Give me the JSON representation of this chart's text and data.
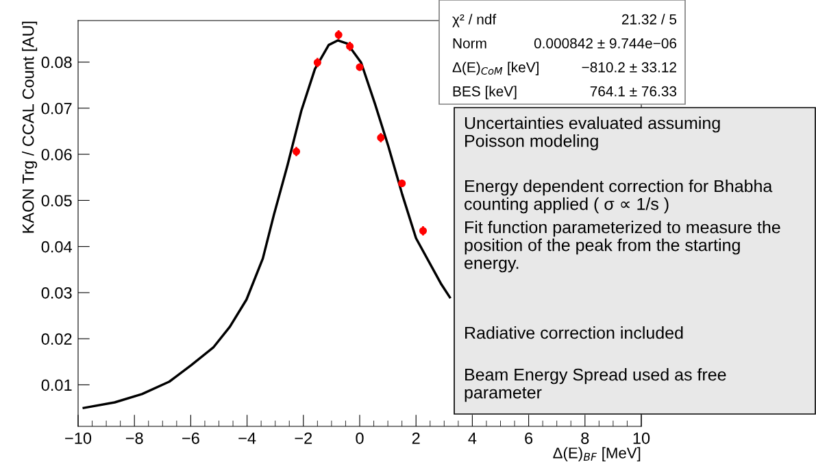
{
  "chart_data": {
    "type": "scatter",
    "xlabel": "Δ(E)$_{BF}$ [MeV]",
    "ylabel": "KAON Trg / CCAL Count [AU]",
    "xlim": [
      -10,
      10
    ],
    "xticks": [
      {
        "value": -10,
        "label": "−10"
      },
      {
        "value": -8,
        "label": "−8"
      },
      {
        "value": -6,
        "label": "−6"
      },
      {
        "value": -4,
        "label": "−4"
      },
      {
        "value": -2,
        "label": "−2"
      },
      0,
      2,
      4,
      6,
      8,
      10
    ],
    "ylim": [
      0.001,
      0.089
    ],
    "yticks": [
      0.01,
      0.02,
      0.03,
      0.04,
      0.05,
      0.06,
      0.07,
      0.08
    ],
    "grid": false,
    "legend": false,
    "series": [
      {
        "type": "line",
        "color": "#000000",
        "marker": "none",
        "line_style": "solid",
        "x": [
          -9.8,
          -8.7,
          -7.73,
          -6.76,
          -5.98,
          -5.2,
          -4.61,
          -4.02,
          -3.44,
          -3.05,
          -2.56,
          -2.07,
          -1.59,
          -1.1,
          -0.78,
          -0.44,
          0.05,
          0.54,
          1.02,
          1.51,
          2.0,
          2.9,
          3.2
        ],
        "values": [
          0.005,
          0.0062,
          0.008,
          0.0107,
          0.0143,
          0.0181,
          0.0226,
          0.0285,
          0.0374,
          0.0468,
          0.0577,
          0.0695,
          0.0785,
          0.0837,
          0.0847,
          0.084,
          0.0799,
          0.071,
          0.0617,
          0.0513,
          0.0418,
          0.0318,
          0.029
        ]
      },
      {
        "color": "#ff0000",
        "marker": "circle",
        "x": [
          -2.25,
          -1.5,
          -0.75,
          -0.35,
          0,
          0.75,
          1.5,
          2.25
        ],
        "values": [
          0.0606,
          0.0799,
          0.0859,
          0.0834,
          0.0789,
          0.0636,
          0.0537,
          0.0434
        ],
        "errors": [
          0.001,
          0.001,
          0.001,
          0.001,
          0.0008,
          0.001,
          0.0008,
          0.001
        ]
      }
    ],
    "annotations": [
      "χ² / ndf",
      "21.32 / 5",
      "Norm",
      "0.000842 ± 9.744e−06",
      "Δ(E)$_{CoM}$ [keV]",
      "−810.2 ± 33.12",
      "BES [keV]",
      "764.1 ± 76.33",
      "Uncertainties evaluated assuming\nPoisson modeling",
      "Energy dependent correction for Bhabha\ncounting applied ( σ ∝ 1/s )",
      "Fit function parameterized to measure the\nposition of the peak from the starting\nenergy.",
      "Radiative correction included",
      "Beam Energy Spread used as free\nparameter"
    ]
  }
}
